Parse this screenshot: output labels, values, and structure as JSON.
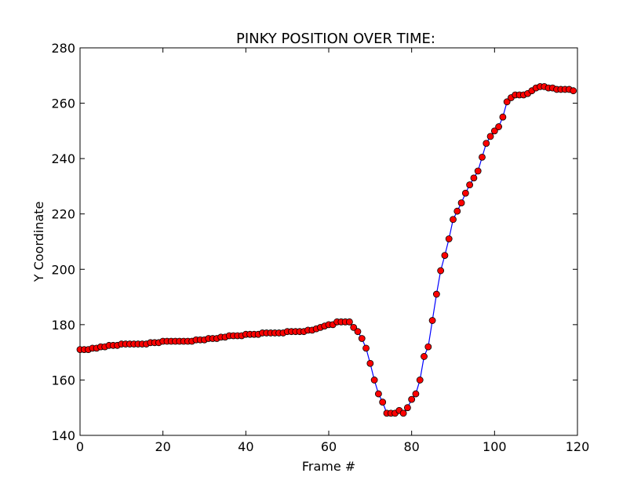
{
  "chart_data": {
    "type": "line",
    "title": "PINKY POSITION OVER TIME:",
    "xlabel": "Frame #",
    "ylabel": "Y Coordinate",
    "xlim": [
      0,
      120
    ],
    "ylim": [
      140,
      280
    ],
    "xticks": [
      0,
      20,
      40,
      60,
      80,
      100,
      120
    ],
    "yticks": [
      140,
      160,
      180,
      200,
      220,
      240,
      260,
      280
    ],
    "grid": false,
    "line_color": "#0000ff",
    "marker_color": "#ff0000",
    "marker_edge": "#000000",
    "series": [
      {
        "x": [
          0,
          1,
          2,
          3,
          4,
          5,
          6,
          7,
          8,
          9,
          10,
          11,
          12,
          13,
          14,
          15,
          16,
          17,
          18,
          19,
          20,
          21,
          22,
          23,
          24,
          25,
          26,
          27,
          28,
          29,
          30,
          31,
          32,
          33,
          34,
          35,
          36,
          37,
          38,
          39,
          40,
          41,
          42,
          43,
          44,
          45,
          46,
          47,
          48,
          49,
          50,
          51,
          52,
          53,
          54,
          55,
          56,
          57,
          58,
          59,
          60,
          61,
          62,
          63,
          64,
          65,
          66,
          67,
          68,
          69,
          70,
          71,
          72,
          73,
          74,
          75,
          76,
          77,
          78,
          79,
          80,
          81,
          82,
          83,
          84,
          85,
          86,
          87,
          88,
          89,
          90,
          91,
          92,
          93,
          94,
          95,
          96,
          97,
          98,
          99,
          100,
          101,
          102,
          103,
          104,
          105,
          106,
          107,
          108,
          109,
          110,
          111,
          112,
          113,
          114,
          115,
          116,
          117,
          118,
          119
        ],
        "y": [
          171,
          171,
          171,
          171.5,
          171.5,
          172,
          172,
          172.5,
          172.5,
          172.5,
          173,
          173,
          173,
          173,
          173,
          173,
          173,
          173.5,
          173.5,
          173.5,
          174,
          174,
          174,
          174,
          174,
          174,
          174,
          174,
          174.5,
          174.5,
          174.5,
          175,
          175,
          175,
          175.5,
          175.5,
          176,
          176,
          176,
          176,
          176.5,
          176.5,
          176.5,
          176.5,
          177,
          177,
          177,
          177,
          177,
          177,
          177.5,
          177.5,
          177.5,
          177.5,
          177.5,
          178,
          178,
          178.5,
          179,
          179.5,
          180,
          180,
          181,
          181,
          181,
          181,
          179,
          177.5,
          175,
          171.5,
          166,
          160,
          155,
          152,
          148,
          148,
          148,
          149,
          148,
          150,
          153,
          155,
          160,
          168.5,
          172,
          181.5,
          191,
          199.5,
          205,
          211,
          218,
          221,
          224,
          227.5,
          230.5,
          233,
          235.5,
          240.5,
          245.5,
          248,
          250,
          251.5,
          255,
          260.5,
          262,
          263,
          263,
          263,
          263.5,
          264.5,
          265.5,
          266,
          266,
          265.5,
          265.5,
          265,
          265,
          265,
          265,
          264.5
        ]
      }
    ]
  }
}
